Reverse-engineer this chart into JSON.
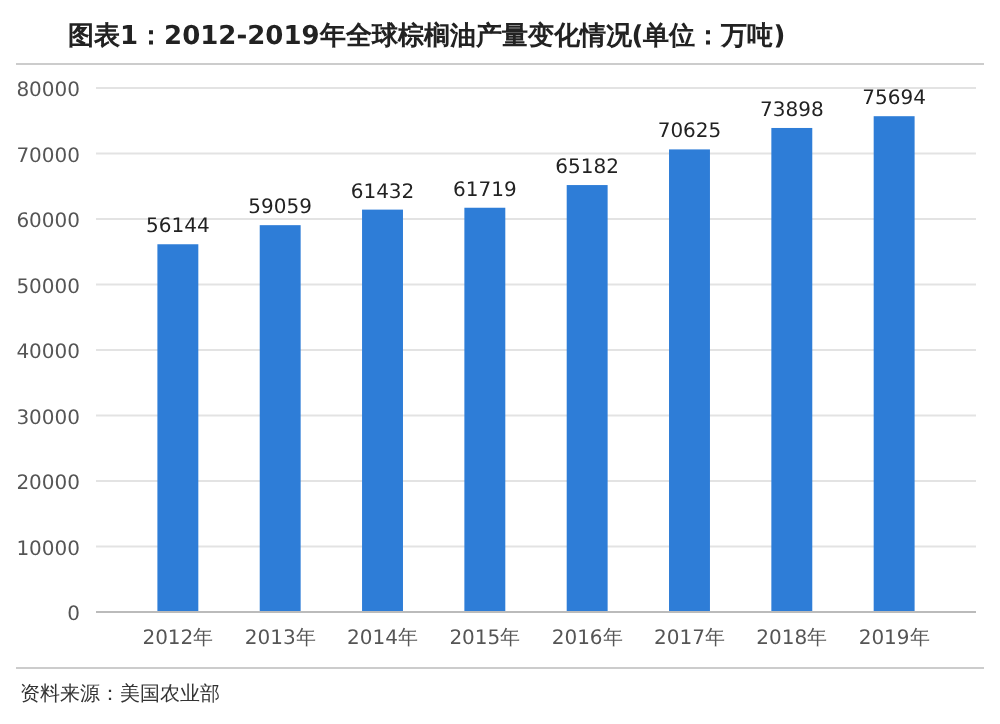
{
  "chart_data": {
    "type": "bar",
    "title": "图表1：2012-2019年全球棕榈油产量变化情况(单位：万吨)",
    "categories": [
      "2012年",
      "2013年",
      "2014年",
      "2015年",
      "2016年",
      "2017年",
      "2018年",
      "2019年"
    ],
    "values": [
      56144,
      59059,
      61432,
      61719,
      65182,
      70625,
      73898,
      75694
    ],
    "color": "#2e7dd7",
    "data_labels": true,
    "ylim": [
      0,
      80000
    ],
    "yticks": [
      0,
      10000,
      20000,
      30000,
      40000,
      50000,
      60000,
      70000,
      80000
    ],
    "grid": "y",
    "annotations": [
      "资料来源：美国农业部"
    ]
  }
}
